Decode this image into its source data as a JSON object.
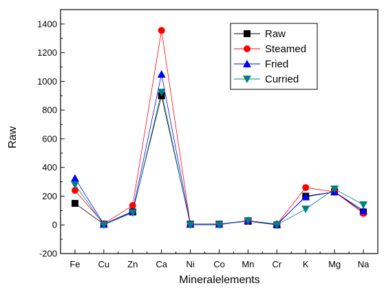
{
  "chart_data": {
    "type": "line",
    "title": "",
    "xlabel": "Mineralelements",
    "ylabel": "Raw",
    "categories": [
      "Fe",
      "Cu",
      "Zn",
      "Ca",
      "Ni",
      "Co",
      "Mn",
      "Cr",
      "K",
      "Mg",
      "Na"
    ],
    "ylim": [
      -200,
      1500
    ],
    "yticks": [
      -200,
      0,
      200,
      400,
      600,
      800,
      1000,
      1200,
      1400
    ],
    "grid": false,
    "legend_position": "top-right",
    "series": [
      {
        "name": "Raw",
        "color": "#000000",
        "marker": "square",
        "values": [
          150,
          5,
          90,
          900,
          5,
          5,
          25,
          0,
          200,
          230,
          90
        ]
      },
      {
        "name": "Steamed",
        "color": "#ff0000",
        "marker": "circle",
        "values": [
          240,
          8,
          135,
          1355,
          5,
          5,
          25,
          5,
          260,
          230,
          80
        ]
      },
      {
        "name": "Fried",
        "color": "#0000ff",
        "marker": "triangle-up",
        "values": [
          325,
          5,
          95,
          1050,
          5,
          5,
          30,
          5,
          195,
          230,
          100
        ]
      },
      {
        "name": "Curried",
        "color": "#008080",
        "marker": "triangle-down",
        "values": [
          280,
          0,
          85,
          925,
          0,
          0,
          30,
          0,
          110,
          250,
          140
        ]
      }
    ]
  }
}
